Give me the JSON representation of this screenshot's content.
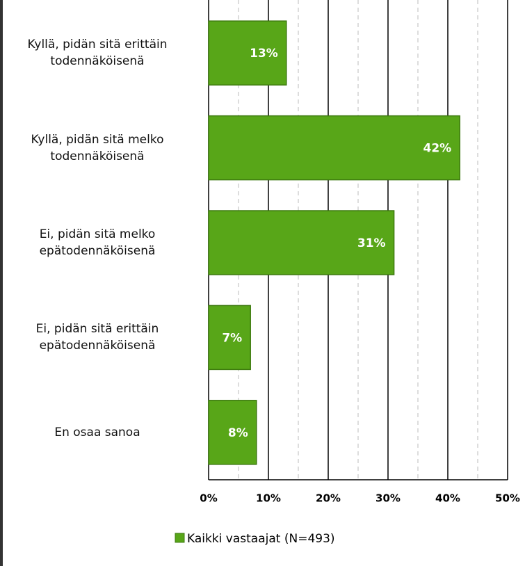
{
  "chart_data": {
    "type": "barh",
    "categories": [
      "Kyllä, pidän sitä erittäin\ntodennäköisenä",
      "Kyllä, pidän sitä melko\ntodennäköisenä",
      "Ei, pidän sitä melko\nepätodennäköisenä",
      "Ei, pidän sitä erittäin\nepätodennäköisenä",
      "En osaa sanoa"
    ],
    "series": [
      {
        "name": "Kaikki vastaajat (N=493)",
        "color": "#58a618",
        "values": [
          13,
          42,
          31,
          7,
          8
        ],
        "value_labels": [
          "13%",
          "42%",
          "31%",
          "7%",
          "8%"
        ]
      }
    ],
    "xlim": [
      0,
      50
    ],
    "xticks": [
      {
        "value": 0,
        "label": "0%"
      },
      {
        "value": 10,
        "label": "10%"
      },
      {
        "value": 20,
        "label": "20%"
      },
      {
        "value": 30,
        "label": "30%"
      },
      {
        "value": 40,
        "label": "40%"
      },
      {
        "value": 50,
        "label": "50%"
      }
    ],
    "minor_xticks": [
      5,
      15,
      25,
      35,
      45
    ],
    "grid": true,
    "legend": "bottom"
  }
}
